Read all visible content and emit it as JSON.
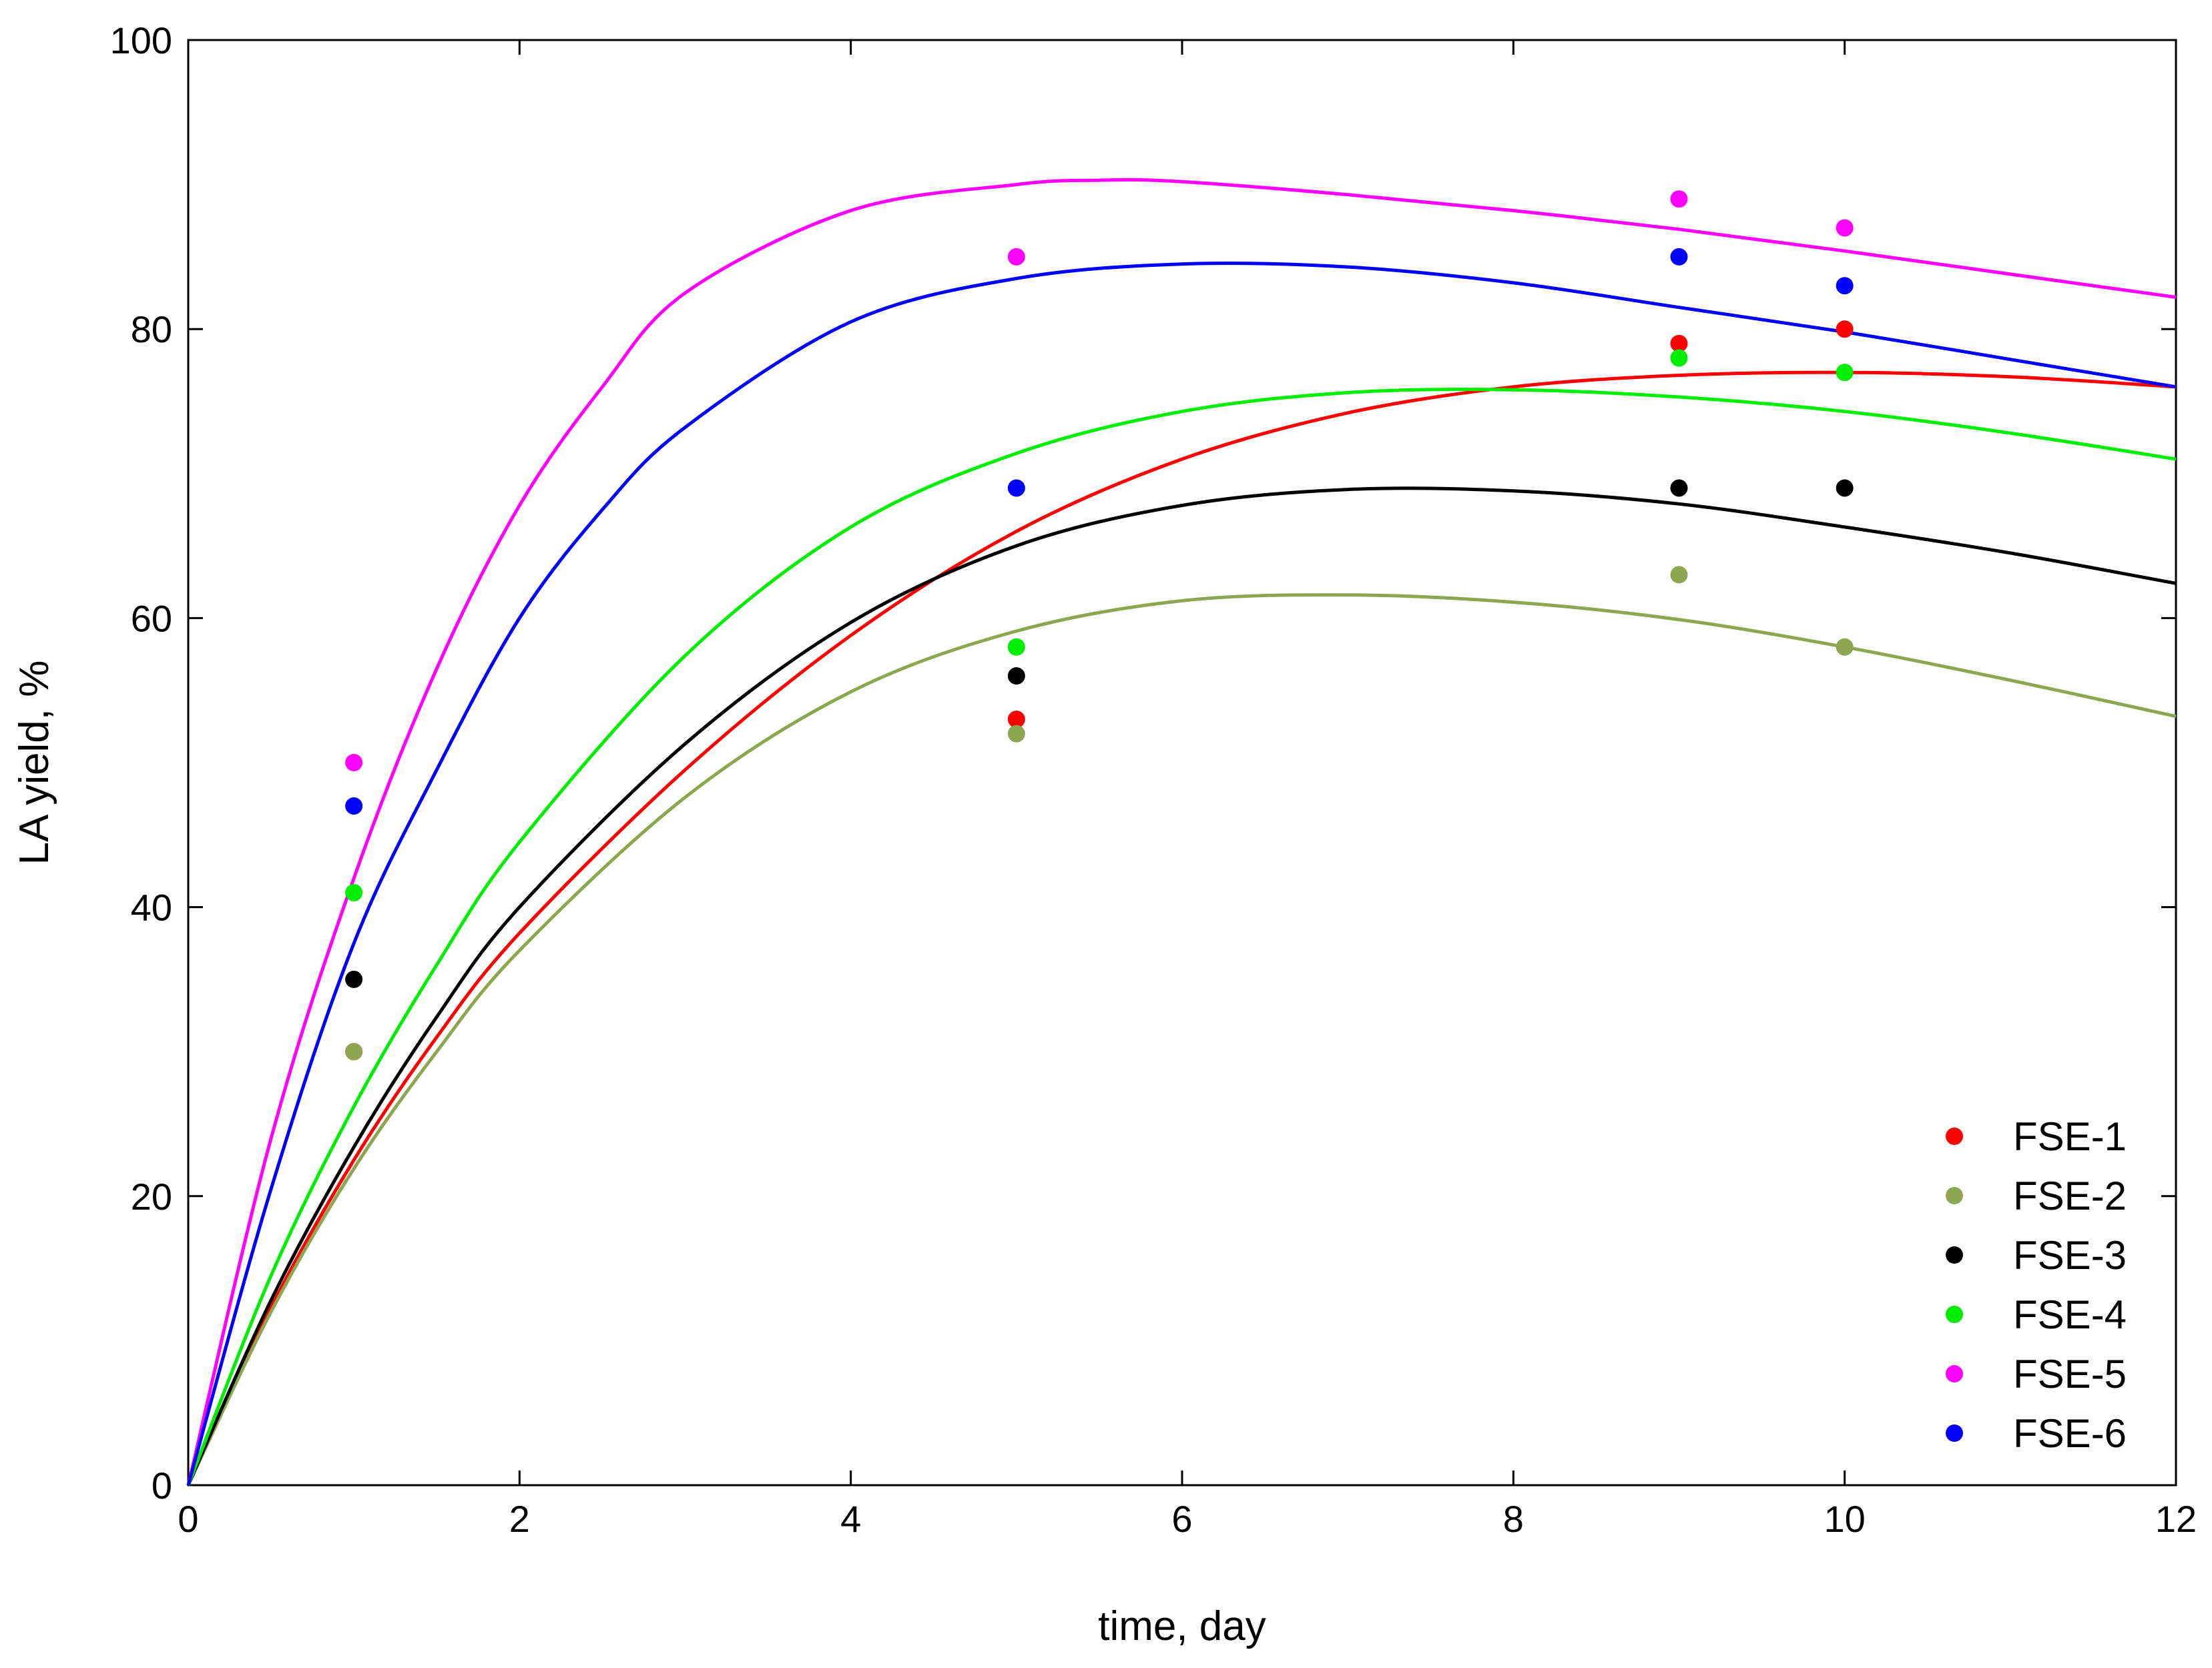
{
  "chart_data": {
    "type": "scatter",
    "title": "",
    "xlabel": "time, day",
    "ylabel": "LA yield, %",
    "xlim": [
      0,
      12
    ],
    "ylim": [
      0,
      100
    ],
    "xticks": [
      0,
      2,
      4,
      6,
      8,
      10,
      12
    ],
    "yticks": [
      0,
      20,
      40,
      60,
      80,
      100
    ],
    "xtick_labels": [
      "0",
      "2",
      "4",
      "6",
      "8",
      "10",
      "12"
    ],
    "ytick_labels": [
      "0",
      "20",
      "40",
      "60",
      "80",
      "100"
    ],
    "grid": false,
    "legend_position": "bottom-right",
    "x": [
      1,
      5,
      9,
      10
    ],
    "series": [
      {
        "name": "FSE-1",
        "color": "#ff0000",
        "values": [
          30,
          53,
          79,
          80
        ],
        "fit_curve": [
          [
            0,
            0
          ],
          [
            0.5,
            12.3
          ],
          [
            1,
            22.5
          ],
          [
            1.5,
            31.0
          ],
          [
            2,
            38.2
          ],
          [
            3,
            49.5
          ],
          [
            4,
            58.8
          ],
          [
            5,
            66.0
          ],
          [
            6,
            71.0
          ],
          [
            7,
            74.2
          ],
          [
            8,
            76.0
          ],
          [
            9,
            76.8
          ],
          [
            10,
            77.0
          ],
          [
            11,
            76.7
          ],
          [
            12,
            76.0
          ]
        ]
      },
      {
        "name": "FSE-2",
        "color": "#8fa650",
        "values": [
          30,
          52,
          63,
          58
        ],
        "fit_curve": [
          [
            0,
            0
          ],
          [
            0.5,
            12.0
          ],
          [
            1,
            21.9
          ],
          [
            1.5,
            30.0
          ],
          [
            2,
            37.0
          ],
          [
            3,
            47.6
          ],
          [
            4,
            54.9
          ],
          [
            5,
            59.1
          ],
          [
            6,
            61.2
          ],
          [
            7,
            61.6
          ],
          [
            8,
            61.1
          ],
          [
            9,
            59.9
          ],
          [
            10,
            58.0
          ],
          [
            11,
            55.7
          ],
          [
            12,
            53.2
          ]
        ]
      },
      {
        "name": "FSE-3",
        "color": "#000000",
        "values": [
          35,
          56,
          69,
          69
        ],
        "fit_curve": [
          [
            0,
            0
          ],
          [
            0.5,
            12.8
          ],
          [
            1,
            23.4
          ],
          [
            1.5,
            32.4
          ],
          [
            2,
            40.0
          ],
          [
            3,
            51.3
          ],
          [
            4,
            59.7
          ],
          [
            5,
            65.0
          ],
          [
            6,
            67.8
          ],
          [
            7,
            68.9
          ],
          [
            8,
            68.8
          ],
          [
            9,
            67.9
          ],
          [
            10,
            66.3
          ],
          [
            11,
            64.5
          ],
          [
            12,
            62.4
          ]
        ]
      },
      {
        "name": "FSE-4",
        "color": "#00ee00",
        "values": [
          41,
          58,
          78,
          77
        ],
        "fit_curve": [
          [
            0,
            0
          ],
          [
            0.5,
            14.5
          ],
          [
            1,
            26.2
          ],
          [
            1.5,
            36.0
          ],
          [
            2,
            44.5
          ],
          [
            3,
            57.4
          ],
          [
            4,
            66.3
          ],
          [
            5,
            71.4
          ],
          [
            6,
            74.3
          ],
          [
            7,
            75.6
          ],
          [
            8,
            75.8
          ],
          [
            9,
            75.3
          ],
          [
            10,
            74.3
          ],
          [
            11,
            72.8
          ],
          [
            12,
            71.0
          ]
        ]
      },
      {
        "name": "FSE-5",
        "color": "#ff00ff",
        "values": [
          50,
          85,
          89,
          87
        ],
        "fit_curve": [
          [
            0,
            0
          ],
          [
            0.5,
            24.0
          ],
          [
            1,
            42.0
          ],
          [
            1.5,
            56.5
          ],
          [
            2,
            67.8
          ],
          [
            2.5,
            76.0
          ],
          [
            3,
            82.5
          ],
          [
            4,
            88.2
          ],
          [
            5,
            90.0
          ],
          [
            5.5,
            90.3
          ],
          [
            6,
            90.2
          ],
          [
            7,
            89.3
          ],
          [
            8,
            88.2
          ],
          [
            9,
            86.9
          ],
          [
            10,
            85.4
          ],
          [
            11,
            83.8
          ],
          [
            12,
            82.2
          ]
        ]
      },
      {
        "name": "FSE-6",
        "color": "#0000ff",
        "values": [
          47,
          69,
          85,
          83
        ],
        "fit_curve": [
          [
            0,
            0
          ],
          [
            0.5,
            20.5
          ],
          [
            1,
            37.5
          ],
          [
            1.5,
            49.5
          ],
          [
            2,
            60.0
          ],
          [
            2.5,
            67.5
          ],
          [
            3,
            73.2
          ],
          [
            4,
            80.5
          ],
          [
            5,
            83.5
          ],
          [
            6,
            84.5
          ],
          [
            7,
            84.3
          ],
          [
            8,
            83.2
          ],
          [
            9,
            81.5
          ],
          [
            10,
            79.8
          ],
          [
            11,
            77.9
          ],
          [
            12,
            76.0
          ]
        ]
      }
    ]
  }
}
